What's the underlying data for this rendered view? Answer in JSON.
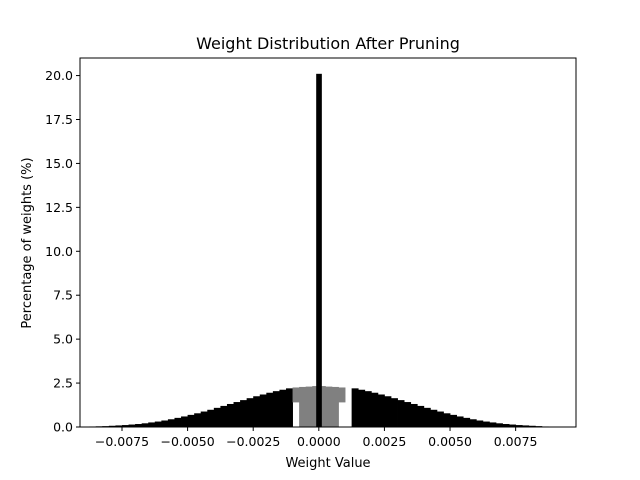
{
  "chart_data": {
    "type": "bar",
    "title": "Weight Distribution After Pruning",
    "xlabel": "Weight Value",
    "ylabel": "Percentage of weights (%)",
    "xlim": [
      -0.0091,
      0.0098
    ],
    "ylim": [
      0,
      21.0
    ],
    "grid": false,
    "x_ticks": [
      -0.0075,
      -0.005,
      -0.0025,
      0.0,
      0.0025,
      0.005,
      0.0075
    ],
    "x_tick_labels": [
      "−0.0075",
      "−0.0050",
      "−0.0025",
      "0.0000",
      "0.0025",
      "0.0050",
      "0.0075"
    ],
    "y_ticks": [
      0,
      2.5,
      5,
      7.5,
      10,
      12.5,
      15,
      17.5,
      20
    ],
    "y_tick_labels": [
      "0.0",
      "2.5",
      "5.0",
      "7.5",
      "10.0",
      "12.5",
      "15.0",
      "17.5",
      "20.0"
    ],
    "bin_width": 0.00025,
    "colors": {
      "bars": "#000000",
      "pruned_region": "#808080"
    },
    "series": [
      {
        "bin_left_edges": [
          -0.00875,
          -0.0085,
          -0.00825,
          -0.008,
          -0.00775,
          -0.0075,
          -0.00725,
          -0.007,
          -0.00675,
          -0.0065,
          -0.00625,
          -0.006,
          -0.00575,
          -0.0055,
          -0.00525,
          -0.005,
          -0.00475,
          -0.0045,
          -0.00425,
          -0.004,
          -0.00375,
          -0.0035,
          -0.00325,
          -0.003,
          -0.00275,
          -0.0025,
          -0.00225,
          -0.002,
          -0.00175,
          -0.0015,
          -0.00125,
          0.00125,
          0.0015,
          0.00175,
          0.002,
          0.00225,
          0.0025,
          0.00275,
          0.003,
          0.00325,
          0.0035,
          0.00375,
          0.004,
          0.00425,
          0.0045,
          0.00475,
          0.005,
          0.00525,
          0.0055,
          0.00575,
          0.006,
          0.00625,
          0.0065,
          0.00675,
          0.007,
          0.00725,
          0.0075,
          0.00775,
          0.008,
          0.00825,
          0.0085
        ],
        "values": [
          0.03,
          0.04,
          0.05,
          0.07,
          0.09,
          0.11,
          0.14,
          0.17,
          0.21,
          0.26,
          0.31,
          0.37,
          0.44,
          0.52,
          0.6,
          0.69,
          0.78,
          0.88,
          0.98,
          1.09,
          1.2,
          1.31,
          1.42,
          1.53,
          1.64,
          1.75,
          1.85,
          1.95,
          2.04,
          2.12,
          2.2,
          2.2,
          2.12,
          2.04,
          1.95,
          1.85,
          1.75,
          1.64,
          1.53,
          1.42,
          1.31,
          1.2,
          1.09,
          0.98,
          0.88,
          0.78,
          0.69,
          0.6,
          0.52,
          0.44,
          0.37,
          0.31,
          0.26,
          0.21,
          0.17,
          0.14,
          0.11,
          0.09,
          0.07,
          0.05,
          0.03
        ]
      },
      {
        "bin_left_edges": [
          -0.001,
          -0.00075,
          -0.0005,
          -0.00025,
          0.0,
          0.00025,
          0.0005,
          0.00075
        ],
        "values": [
          2.25,
          2.28,
          2.3,
          2.33,
          2.33,
          2.3,
          2.28,
          2.25
        ],
        "hollow_to": [
          1.4,
          0.0,
          0.0,
          0.0,
          0.0,
          0.0,
          0.0,
          1.4
        ]
      },
      {
        "bin_left_edges": [
          -0.0001
        ],
        "bin_widths": [
          0.0002
        ],
        "values": [
          20.1
        ]
      }
    ]
  }
}
